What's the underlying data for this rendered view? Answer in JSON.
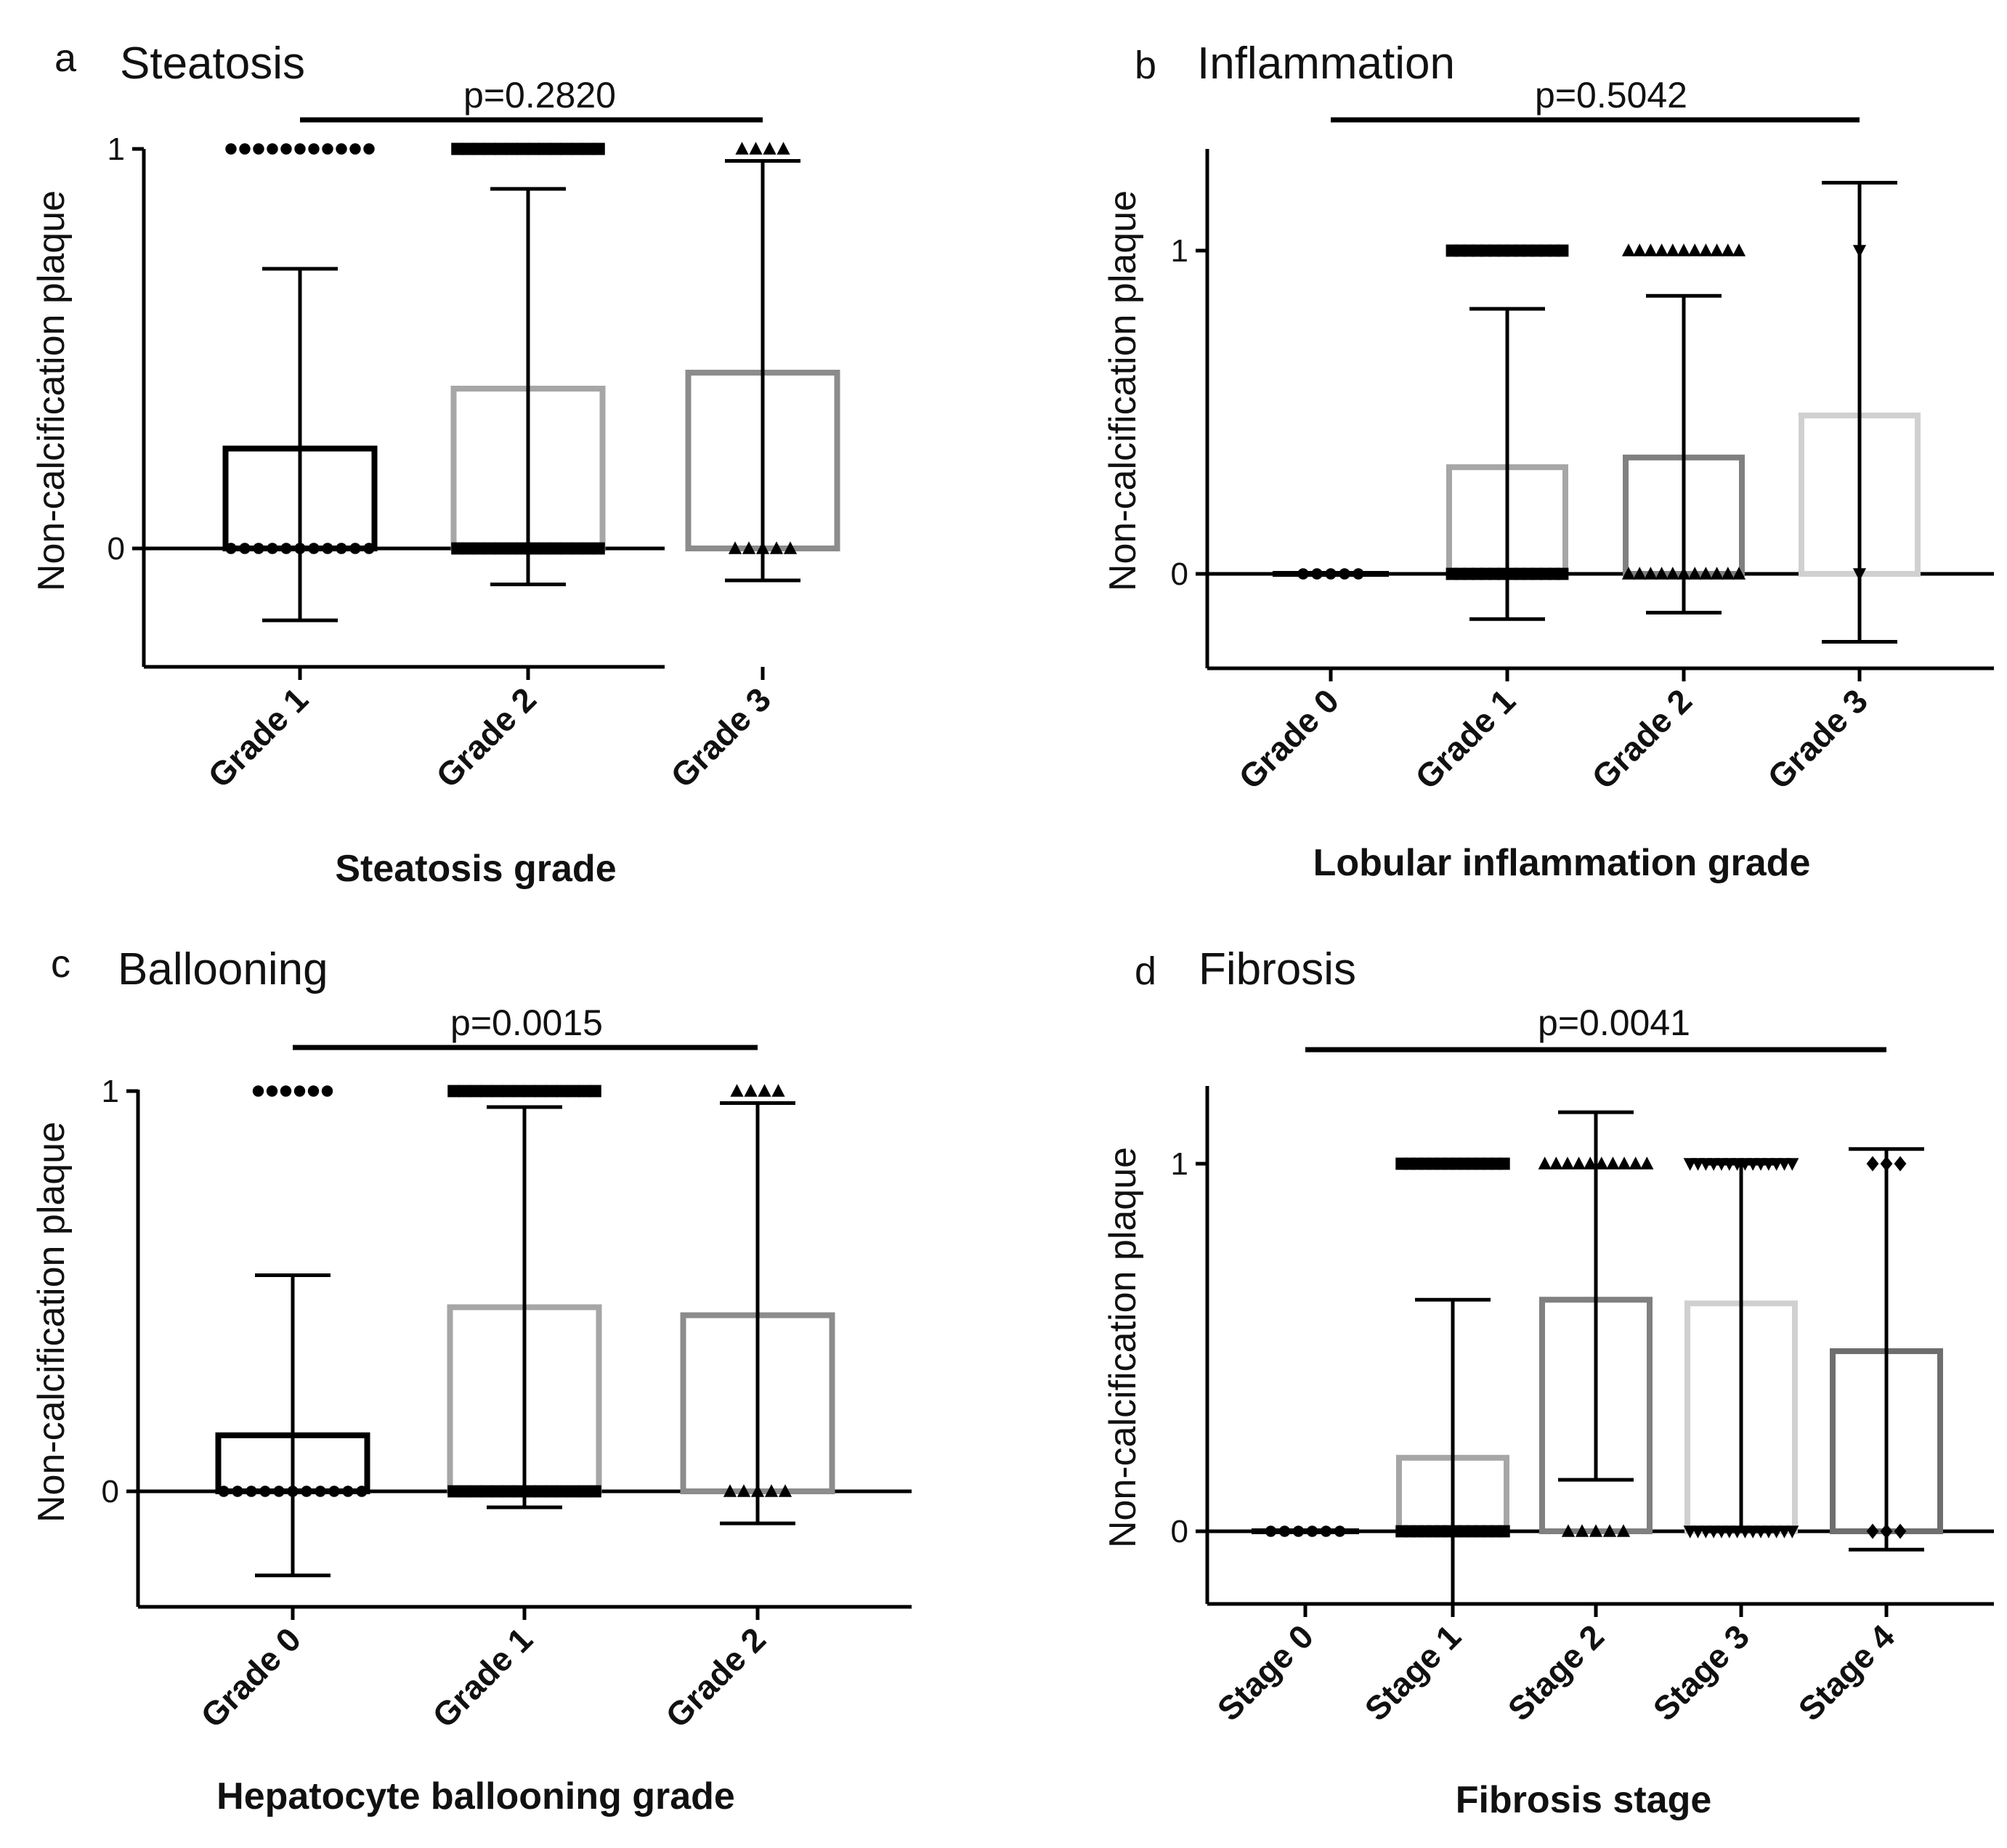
{
  "chart_data": [
    {
      "id": "a",
      "type": "bar",
      "panel_label": "a",
      "title": "Steatosis",
      "xlabel": "Steatosis grade",
      "ylabel": "Non-calcification plaque",
      "categories": [
        "Grade 1",
        "Grade 2",
        "Grade 3"
      ],
      "values": [
        0.25,
        0.4,
        0.44
      ],
      "error_low": [
        -0.18,
        -0.09,
        -0.08
      ],
      "error_high": [
        0.7,
        0.9,
        0.97
      ],
      "bar_colors": [
        "#000000",
        "#a6a6a6",
        "#8c8c8c"
      ],
      "point_markers": [
        "circle",
        "square",
        "triangle"
      ],
      "points_at_1": [
        11,
        14,
        4
      ],
      "points_at_0": [
        11,
        14,
        5
      ],
      "ylim": [
        -0.3,
        1.0
      ],
      "yticks": [
        0,
        1
      ],
      "comparison_span": [
        0,
        2
      ],
      "p_value": "p=0.2820"
    },
    {
      "id": "b",
      "type": "bar",
      "panel_label": "b",
      "title": "Inflammation",
      "xlabel": "Lobular inflammation grade",
      "ylabel": "Non-calcification plaque",
      "categories": [
        "Grade 0",
        "Grade 1",
        "Grade 2",
        "Grade 3"
      ],
      "values": [
        0.0,
        0.33,
        0.36,
        0.49
      ],
      "error_low": [
        0.0,
        -0.14,
        -0.12,
        -0.21
      ],
      "error_high": [
        0.0,
        0.82,
        0.86,
        1.21
      ],
      "bar_colors": [
        "#000000",
        "#a6a6a6",
        "#808080",
        "#d0d0d0"
      ],
      "point_markers": [
        "circle",
        "square",
        "triangle",
        "triangle-down"
      ],
      "points_at_1": [
        0,
        14,
        11,
        1
      ],
      "points_at_0": [
        5,
        14,
        11,
        1
      ],
      "ylim": [
        -0.3,
        1.3
      ],
      "yticks": [
        0,
        1
      ],
      "comparison_span": [
        0,
        3
      ],
      "p_value": "p=0.5042"
    },
    {
      "id": "c",
      "type": "bar",
      "panel_label": "c",
      "title": "Ballooning",
      "xlabel": "Hepatocyte ballooning grade",
      "ylabel": "Non-calcification plaque",
      "categories": [
        "Grade 0",
        "Grade 1",
        "Grade 2"
      ],
      "values": [
        0.14,
        0.46,
        0.44
      ],
      "error_low": [
        -0.21,
        -0.04,
        -0.08
      ],
      "error_high": [
        0.54,
        0.96,
        0.97
      ],
      "bar_colors": [
        "#000000",
        "#a6a6a6",
        "#8c8c8c"
      ],
      "point_markers": [
        "circle",
        "square",
        "triangle"
      ],
      "points_at_1": [
        6,
        14,
        4
      ],
      "points_at_0": [
        11,
        14,
        5
      ],
      "ylim": [
        -0.3,
        1.0
      ],
      "yticks": [
        0,
        1
      ],
      "comparison_span": [
        0,
        2
      ],
      "p_value": "p=0.0015"
    },
    {
      "id": "d",
      "type": "bar",
      "panel_label": "d",
      "title": "Fibrosis",
      "xlabel": "Fibrosis stage",
      "ylabel": "Non-calcification plaque",
      "categories": [
        "Stage 0",
        "Stage 1",
        "Stage 2",
        "Stage 3",
        "Stage 4"
      ],
      "values": [
        0.0,
        0.2,
        0.63,
        0.62,
        0.49
      ],
      "error_low": [
        0.0,
        -0.22,
        0.14,
        0.0,
        -0.05
      ],
      "error_high": [
        0.0,
        0.63,
        1.14,
        1.0,
        1.04
      ],
      "bar_colors": [
        "#000000",
        "#a6a6a6",
        "#808080",
        "#d0d0d0",
        "#6e6e6e"
      ],
      "point_markers": [
        "circle",
        "square",
        "triangle",
        "triangle-down",
        "diamond"
      ],
      "points_at_1": [
        0,
        14,
        10,
        14,
        3
      ],
      "points_at_0": [
        6,
        14,
        5,
        14,
        3
      ],
      "ylim": [
        -0.2,
        1.2
      ],
      "yticks": [
        0,
        1
      ],
      "comparison_span": [
        0,
        4
      ],
      "p_value": "p=0.0041"
    }
  ]
}
